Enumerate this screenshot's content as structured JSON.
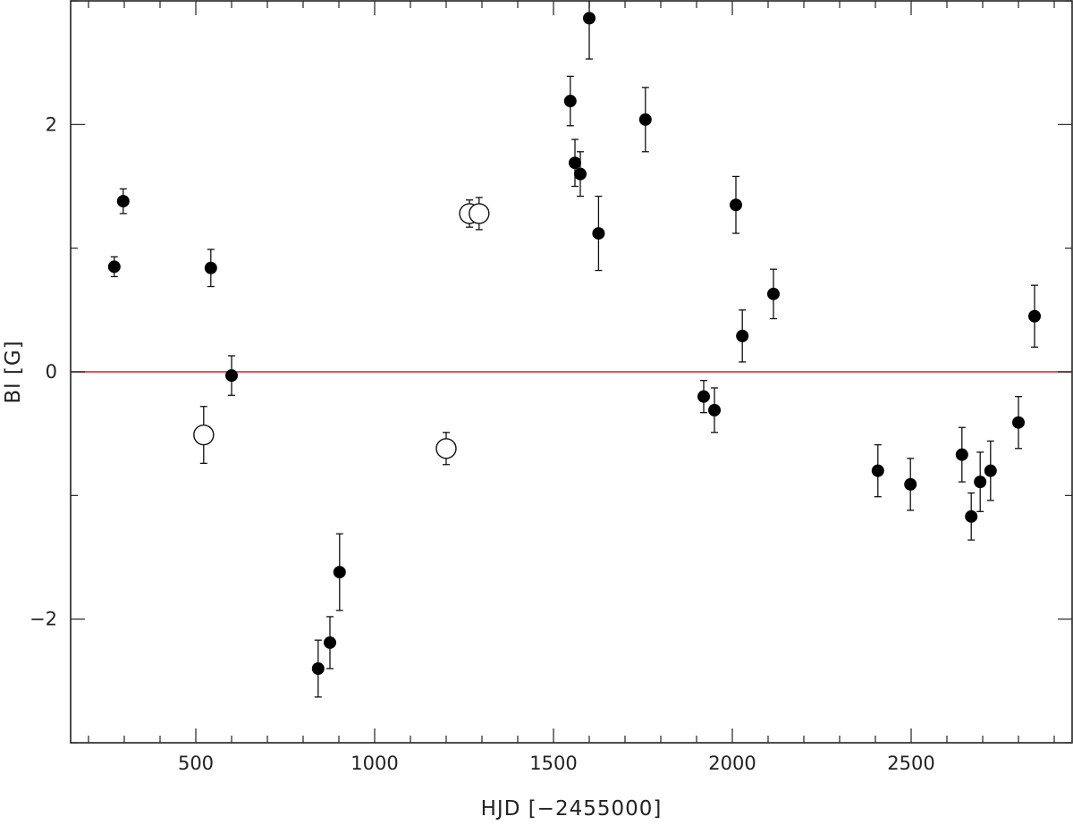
{
  "chart_data": {
    "type": "scatter",
    "title": "",
    "xlabel": "HJD [−2455000]",
    "ylabel": "Bl [G]",
    "xlim": [
      150,
      2950
    ],
    "ylim": [
      -3.0,
      3.0
    ],
    "x_ticks": [
      500,
      1000,
      1500,
      2000,
      2500
    ],
    "y_ticks": [
      -2,
      0,
      2
    ],
    "x_tick_labels": [
      "500",
      "1000",
      "1500",
      "2000",
      "2500"
    ],
    "y_tick_labels": [
      "−2",
      "0",
      "2"
    ],
    "x_minor_step": 100,
    "y_minor_step": 1,
    "grid": false,
    "reference_line": {
      "y": 0,
      "color": "#e8393a"
    },
    "series": [
      {
        "marker": "filled-circle",
        "points": [
          {
            "x": 272,
            "y": 0.85,
            "err": 0.08
          },
          {
            "x": 297,
            "y": 1.38,
            "err": 0.1
          },
          {
            "x": 542,
            "y": 0.84,
            "err": 0.15
          },
          {
            "x": 600,
            "y": -0.03,
            "err": 0.16
          },
          {
            "x": 842,
            "y": -2.4,
            "err": 0.23
          },
          {
            "x": 875,
            "y": -2.19,
            "err": 0.21
          },
          {
            "x": 902,
            "y": -1.62,
            "err": 0.31
          },
          {
            "x": 1547,
            "y": 2.19,
            "err": 0.2
          },
          {
            "x": 1560,
            "y": 1.69,
            "err": 0.19
          },
          {
            "x": 1575,
            "y": 1.6,
            "err": 0.18
          },
          {
            "x": 1600,
            "y": 2.86,
            "err": 0.33
          },
          {
            "x": 1626,
            "y": 1.12,
            "err": 0.3
          },
          {
            "x": 1757,
            "y": 2.04,
            "err": 0.26
          },
          {
            "x": 1920,
            "y": -0.2,
            "err": 0.13
          },
          {
            "x": 1950,
            "y": -0.31,
            "err": 0.18
          },
          {
            "x": 2010,
            "y": 1.35,
            "err": 0.23
          },
          {
            "x": 2028,
            "y": 0.29,
            "err": 0.21
          },
          {
            "x": 2115,
            "y": 0.63,
            "err": 0.2
          },
          {
            "x": 2407,
            "y": -0.8,
            "err": 0.21
          },
          {
            "x": 2498,
            "y": -0.91,
            "err": 0.21
          },
          {
            "x": 2642,
            "y": -0.67,
            "err": 0.22
          },
          {
            "x": 2668,
            "y": -1.17,
            "err": 0.19
          },
          {
            "x": 2693,
            "y": -0.89,
            "err": 0.24
          },
          {
            "x": 2722,
            "y": -0.8,
            "err": 0.24
          },
          {
            "x": 2800,
            "y": -0.41,
            "err": 0.21
          },
          {
            "x": 2845,
            "y": 0.45,
            "err": 0.25
          }
        ]
      },
      {
        "marker": "open-circle",
        "points": [
          {
            "x": 522,
            "y": -0.51,
            "err": 0.23
          },
          {
            "x": 1200,
            "y": -0.62,
            "err": 0.13
          },
          {
            "x": 1265,
            "y": 1.28,
            "err": 0.11
          },
          {
            "x": 1292,
            "y": 1.28,
            "err": 0.13
          }
        ]
      }
    ]
  }
}
